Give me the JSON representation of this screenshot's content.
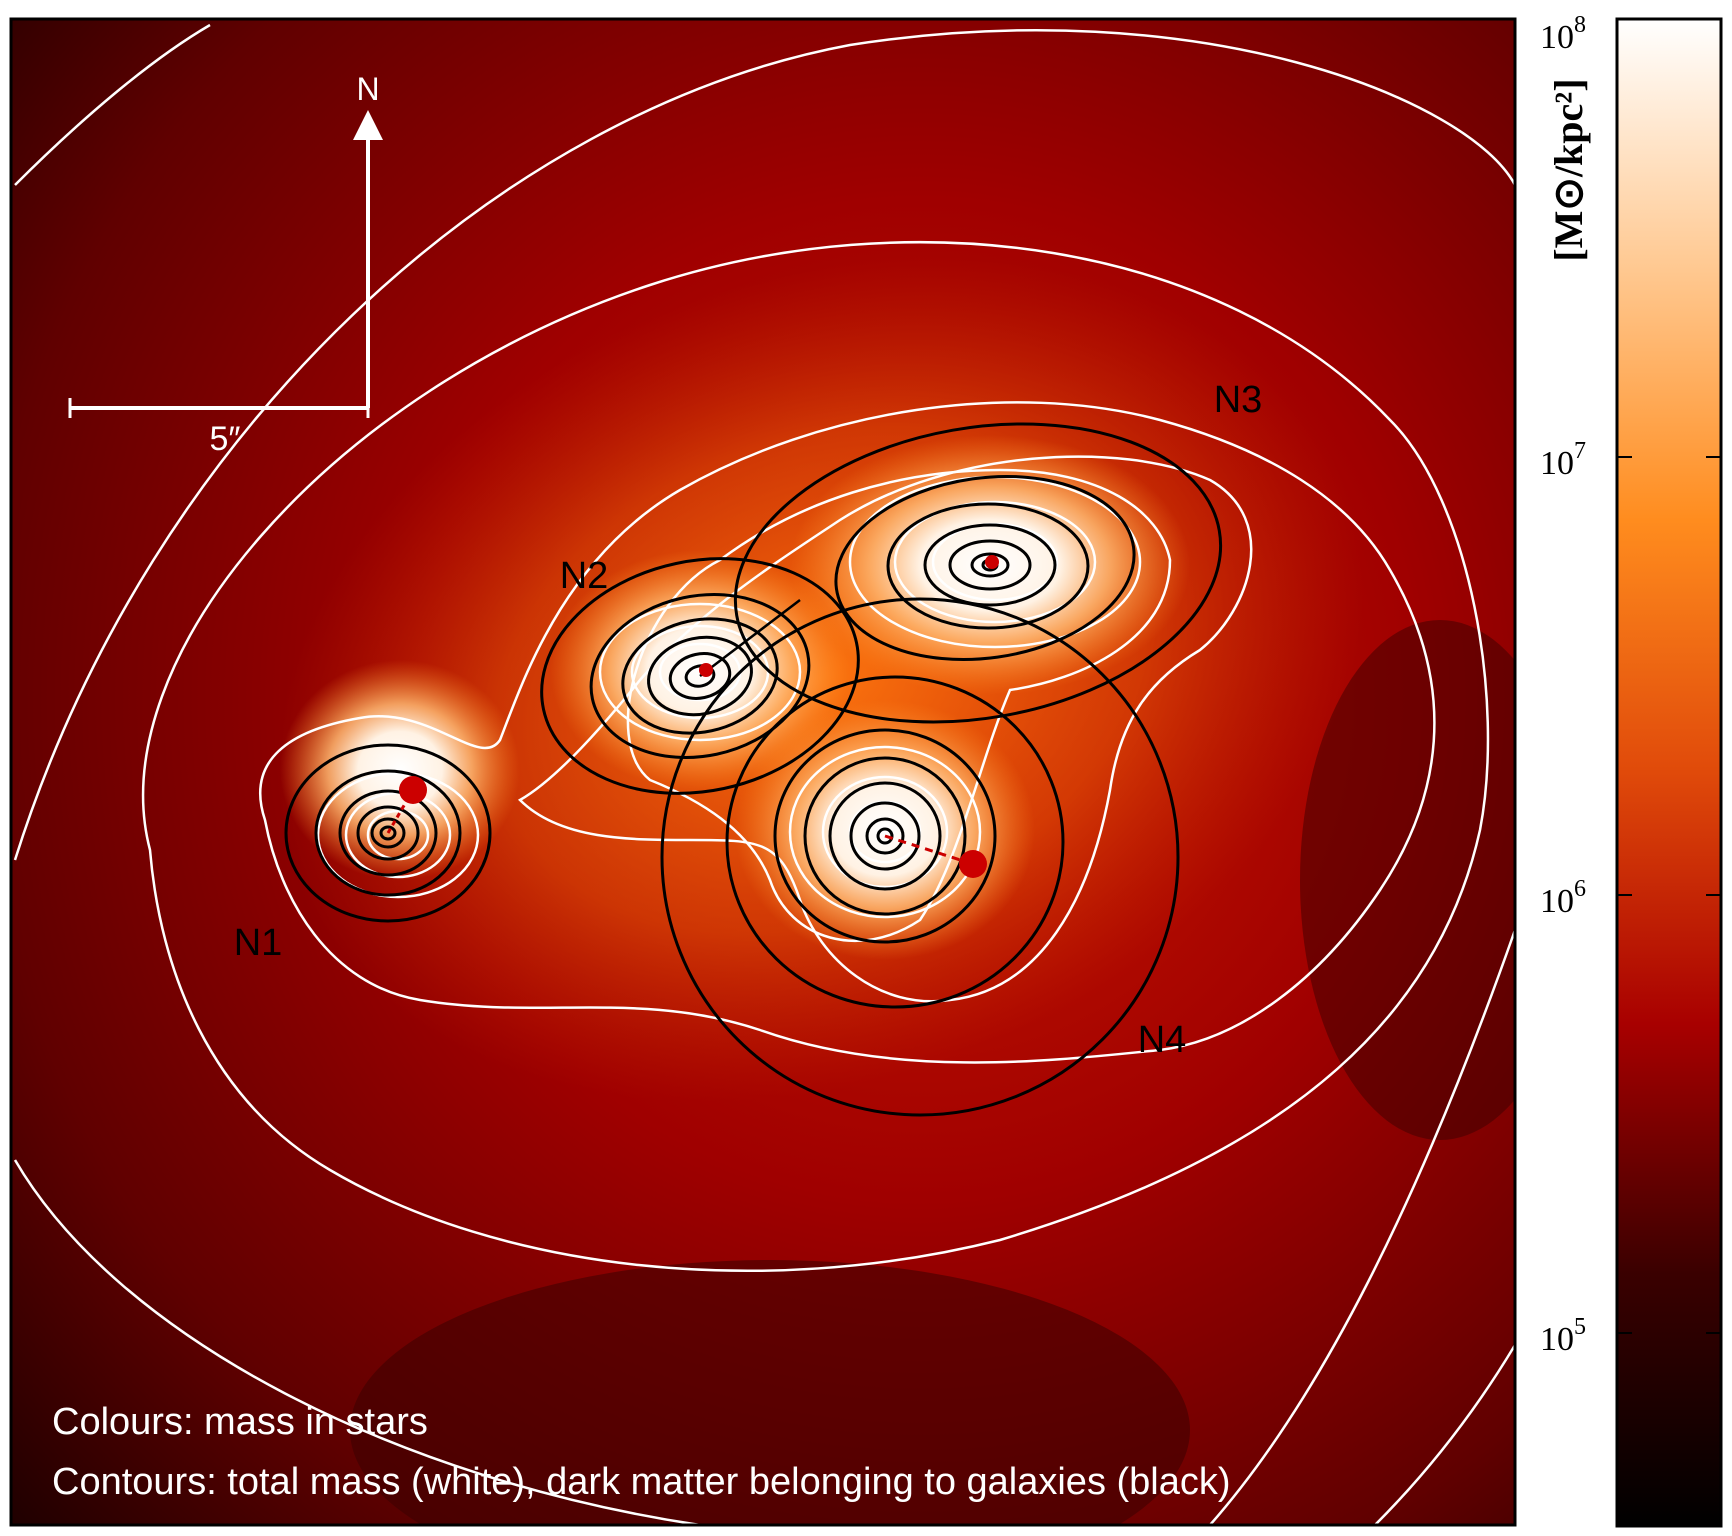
{
  "colormap_stops": [
    "#000000",
    "#3a0000",
    "#a80000",
    "#e04a0a",
    "#ff8c1e",
    "#ffc890",
    "#ffffff"
  ],
  "panel": {
    "compass_label": "N",
    "scale_label": "5″",
    "caption_line1": "Colours: mass in stars",
    "caption_line2": "Contours: total mass (white), dark matter belonging to galaxies (black)"
  },
  "galaxies": [
    {
      "id": "n1",
      "label": "N1"
    },
    {
      "id": "n2",
      "label": "N2"
    },
    {
      "id": "n3",
      "label": "N3"
    },
    {
      "id": "n4",
      "label": "N4"
    }
  ],
  "colorbar": {
    "unit_label": "[M⊙/kpc²]",
    "ticks": [
      {
        "base": "10",
        "exp": "8"
      },
      {
        "base": "10",
        "exp": "7"
      },
      {
        "base": "10",
        "exp": "6"
      },
      {
        "base": "10",
        "exp": "5"
      }
    ]
  },
  "colors": {
    "total_mass_contours": "#ffffff",
    "dark_matter_contours": "#000000",
    "markers": "#cc0000"
  }
}
